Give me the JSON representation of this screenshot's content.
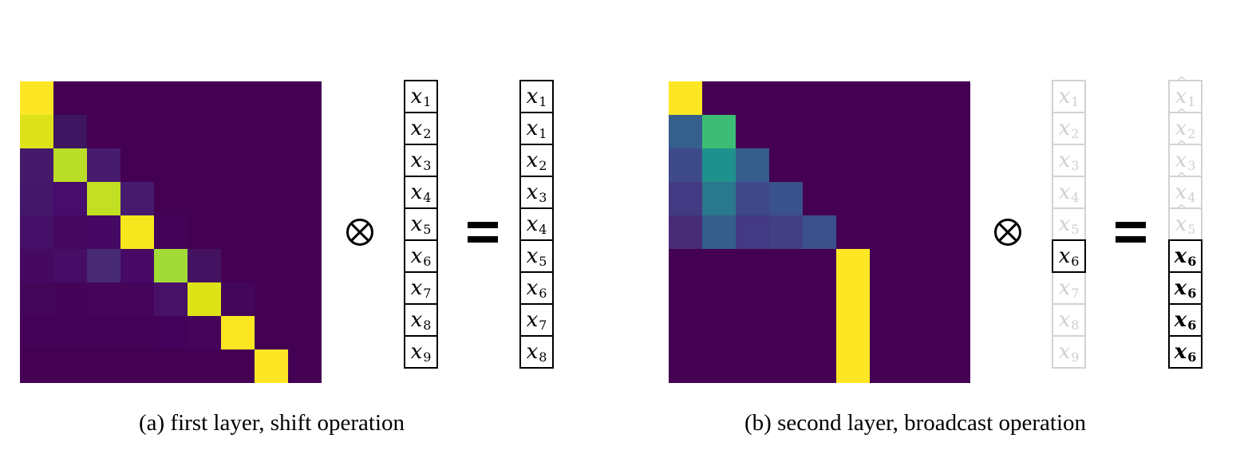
{
  "panel_a": {
    "caption": "(a) first layer, shift operation",
    "matrix_size": 9,
    "heatmap_cells": [
      [
        0,
        0,
        "#fde725"
      ],
      [
        1,
        0,
        "#dde318"
      ],
      [
        1,
        1,
        "#3e1561"
      ],
      [
        2,
        0,
        "#451a6a"
      ],
      [
        2,
        1,
        "#bade28"
      ],
      [
        2,
        2,
        "#471c6d"
      ],
      [
        3,
        0,
        "#44176a"
      ],
      [
        3,
        1,
        "#460d6c"
      ],
      [
        3,
        2,
        "#c2df23"
      ],
      [
        3,
        3,
        "#461a6c"
      ],
      [
        4,
        0,
        "#440f66"
      ],
      [
        4,
        1,
        "#450861"
      ],
      [
        4,
        2,
        "#450963"
      ],
      [
        4,
        3,
        "#f5e61e"
      ],
      [
        4,
        4,
        "#440458"
      ],
      [
        5,
        0,
        "#450962"
      ],
      [
        5,
        1,
        "#460c66"
      ],
      [
        5,
        2,
        "#472a73"
      ],
      [
        5,
        3,
        "#460a65"
      ],
      [
        5,
        4,
        "#a2da37"
      ],
      [
        5,
        5,
        "#431260"
      ],
      [
        6,
        0,
        "#440658"
      ],
      [
        6,
        1,
        "#440459"
      ],
      [
        6,
        2,
        "#44055a"
      ],
      [
        6,
        3,
        "#44055a"
      ],
      [
        6,
        4,
        "#461166"
      ],
      [
        6,
        5,
        "#dee318"
      ],
      [
        6,
        6,
        "#44065a"
      ],
      [
        7,
        0,
        "#440357"
      ],
      [
        7,
        1,
        "#440357"
      ],
      [
        7,
        2,
        "#440357"
      ],
      [
        7,
        3,
        "#440357"
      ],
      [
        7,
        4,
        "#44035a"
      ],
      [
        7,
        5,
        "#44055a"
      ],
      [
        7,
        6,
        "#fae722"
      ],
      [
        8,
        7,
        "#fde725"
      ]
    ],
    "background_color": "#440154",
    "vector_in": [
      "x",
      "x",
      "x",
      "x",
      "x",
      "x",
      "x",
      "x",
      "x"
    ],
    "vector_in_sub": [
      "1",
      "2",
      "3",
      "4",
      "5",
      "6",
      "7",
      "8",
      "9"
    ],
    "vector_out": [
      "x",
      "x",
      "x",
      "x",
      "x",
      "x",
      "x",
      "x",
      "x"
    ],
    "vector_out_sub": [
      "1",
      "1",
      "2",
      "3",
      "4",
      "5",
      "6",
      "7",
      "8"
    ]
  },
  "panel_b": {
    "caption": "(b) second layer, broadcast operation",
    "matrix_size": 9,
    "heatmap_cells": [
      [
        0,
        0,
        "#fde725"
      ],
      [
        1,
        0,
        "#355f8d"
      ],
      [
        1,
        1,
        "#3cbc74"
      ],
      [
        2,
        0,
        "#3e4a89"
      ],
      [
        2,
        1,
        "#1f918d"
      ],
      [
        2,
        2,
        "#355e8d"
      ],
      [
        3,
        0,
        "#423b83"
      ],
      [
        3,
        1,
        "#2a788e"
      ],
      [
        3,
        2,
        "#3f4889"
      ],
      [
        3,
        3,
        "#3a528b"
      ],
      [
        4,
        0,
        "#482c76"
      ],
      [
        4,
        1,
        "#355e8d"
      ],
      [
        4,
        2,
        "#443983"
      ],
      [
        4,
        3,
        "#423f85"
      ],
      [
        4,
        4,
        "#3b518b"
      ],
      [
        5,
        5,
        "#fde725"
      ],
      [
        6,
        5,
        "#fde725"
      ],
      [
        7,
        5,
        "#fde725"
      ],
      [
        8,
        5,
        "#fde725"
      ]
    ],
    "background_color": "#440154",
    "vector_in": [
      "x",
      "x",
      "x",
      "x",
      "x",
      "x",
      "x",
      "x",
      "x"
    ],
    "vector_in_sub": [
      "1",
      "2",
      "3",
      "4",
      "5",
      "6",
      "7",
      "8",
      "9"
    ],
    "vector_in_highlight_index": 5,
    "vector_out": [
      "x",
      "x",
      "x",
      "x",
      "x",
      "x",
      "x",
      "x",
      "x"
    ],
    "vector_out_sub": [
      "1",
      "2",
      "3",
      "4",
      "5",
      "6",
      "6",
      "6",
      "6"
    ],
    "vector_out_hat_count": 5
  },
  "operator_symbol_name": "circled-times-icon",
  "equals_symbol_name": "equals-icon"
}
